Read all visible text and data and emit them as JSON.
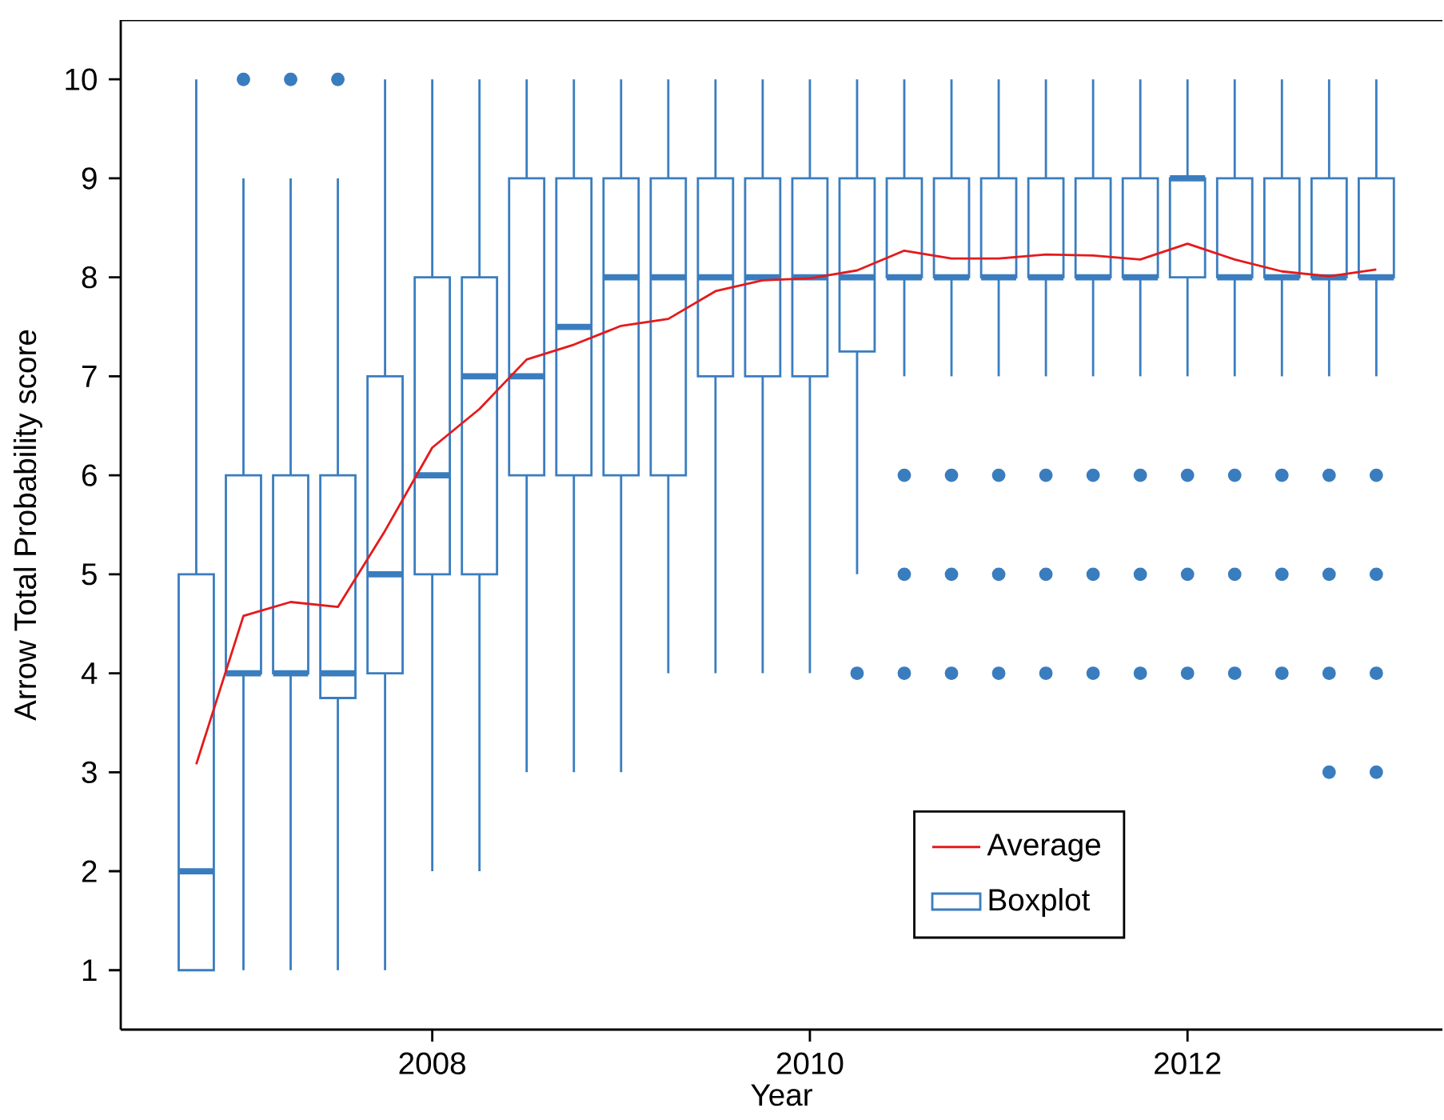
{
  "chart_data": {
    "type": "box",
    "xlabel": "Year",
    "ylabel": "Arrow Total Probability score",
    "x": [
      2006.75,
      2007.0,
      2007.25,
      2007.5,
      2007.75,
      2008.0,
      2008.25,
      2008.5,
      2008.75,
      2009.0,
      2009.25,
      2009.5,
      2009.75,
      2010.0,
      2010.25,
      2010.5,
      2010.75,
      2011.0,
      2011.25,
      2011.5,
      2011.75,
      2012.0,
      2012.25,
      2012.5,
      2012.75,
      2013.0
    ],
    "xlim": [
      2006.35,
      2013.35
    ],
    "xticks": [
      2008,
      2010,
      2012
    ],
    "ylim": [
      0.4,
      10.6
    ],
    "yticks": [
      1,
      2,
      3,
      4,
      5,
      6,
      7,
      8,
      9,
      10
    ],
    "legend": "bottom right",
    "series": [
      {
        "name": "Average",
        "type": "line",
        "color": "#e41a1c",
        "values": [
          3.08,
          4.58,
          4.72,
          4.67,
          5.44,
          6.28,
          6.67,
          7.17,
          7.32,
          7.51,
          7.58,
          7.86,
          7.97,
          7.99,
          8.07,
          8.27,
          8.19,
          8.19,
          8.23,
          8.22,
          8.18,
          8.34,
          8.18,
          8.06,
          8.01,
          8.08
        ]
      },
      {
        "name": "Boxplot",
        "marker": "circle",
        "color": "#3a7dbf",
        "boxes": [
          {
            "low": 1,
            "q1": 1,
            "median": 2,
            "q3": 5,
            "high": 10
          },
          {
            "low": 1,
            "q1": 4,
            "median": 4,
            "q3": 6,
            "high": 9,
            "outliers": [
              10
            ]
          },
          {
            "low": 1,
            "q1": 4,
            "median": 4,
            "q3": 6,
            "high": 9,
            "outliers": [
              10
            ]
          },
          {
            "low": 1,
            "q1": 3.75,
            "median": 4,
            "q3": 6,
            "high": 9,
            "outliers": [
              10
            ]
          },
          {
            "low": 1,
            "q1": 4,
            "median": 5,
            "q3": 7,
            "high": 10
          },
          {
            "low": 2,
            "q1": 5,
            "median": 6,
            "q3": 8,
            "high": 10
          },
          {
            "low": 2,
            "q1": 5,
            "median": 7,
            "q3": 8,
            "high": 10
          },
          {
            "low": 3,
            "q1": 6,
            "median": 7,
            "q3": 9,
            "high": 10
          },
          {
            "low": 3,
            "q1": 6,
            "median": 7.5,
            "q3": 9,
            "high": 10
          },
          {
            "low": 3,
            "q1": 6,
            "median": 8,
            "q3": 9,
            "high": 10
          },
          {
            "low": 4,
            "q1": 6,
            "median": 8,
            "q3": 9,
            "high": 10
          },
          {
            "low": 4,
            "q1": 7,
            "median": 8,
            "q3": 9,
            "high": 10
          },
          {
            "low": 4,
            "q1": 7,
            "median": 8,
            "q3": 9,
            "high": 10
          },
          {
            "low": 4,
            "q1": 7,
            "median": 8,
            "q3": 9,
            "high": 10
          },
          {
            "low": 5,
            "q1": 7.25,
            "median": 8,
            "q3": 9,
            "high": 10,
            "outliers": [
              4
            ]
          },
          {
            "low": 7,
            "q1": 8,
            "median": 8,
            "q3": 9,
            "high": 10,
            "outliers": [
              4,
              5,
              6
            ]
          },
          {
            "low": 7,
            "q1": 8,
            "median": 8,
            "q3": 9,
            "high": 10,
            "outliers": [
              4,
              5,
              6
            ]
          },
          {
            "low": 7,
            "q1": 8,
            "median": 8,
            "q3": 9,
            "high": 10,
            "outliers": [
              4,
              5,
              6
            ]
          },
          {
            "low": 7,
            "q1": 8,
            "median": 8,
            "q3": 9,
            "high": 10,
            "outliers": [
              4,
              5,
              6
            ]
          },
          {
            "low": 7,
            "q1": 8,
            "median": 8,
            "q3": 9,
            "high": 10,
            "outliers": [
              4,
              5,
              6
            ]
          },
          {
            "low": 7,
            "q1": 8,
            "median": 8,
            "q3": 9,
            "high": 10,
            "outliers": [
              4,
              5,
              6
            ]
          },
          {
            "low": 7,
            "q1": 8,
            "median": 9,
            "q3": 9,
            "high": 10,
            "outliers": [
              4,
              5,
              6
            ]
          },
          {
            "low": 7,
            "q1": 8,
            "median": 8,
            "q3": 9,
            "high": 10,
            "outliers": [
              4,
              5,
              6
            ]
          },
          {
            "low": 7,
            "q1": 8,
            "median": 8,
            "q3": 9,
            "high": 10,
            "outliers": [
              4,
              5,
              6
            ]
          },
          {
            "low": 7,
            "q1": 8,
            "median": 8,
            "q3": 9,
            "high": 10,
            "outliers": [
              3,
              4,
              5,
              6
            ]
          },
          {
            "low": 7,
            "q1": 8,
            "median": 8,
            "q3": 9,
            "high": 10,
            "outliers": [
              3,
              4,
              5,
              6
            ]
          }
        ]
      }
    ]
  }
}
